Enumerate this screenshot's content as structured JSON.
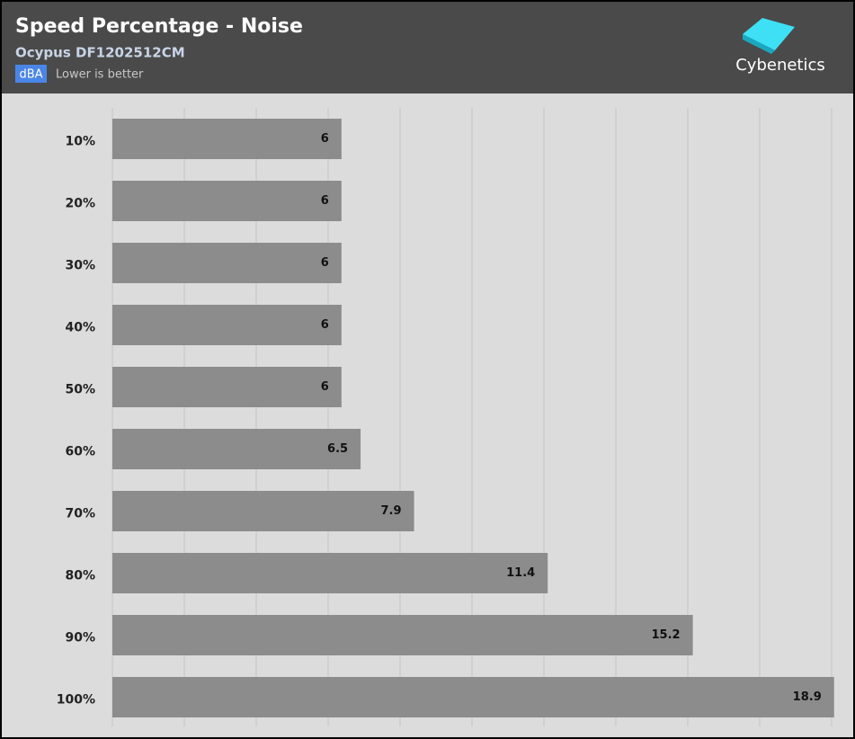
{
  "chart_data": {
    "type": "bar",
    "orientation": "horizontal",
    "title": "Speed Percentage - Noise",
    "subtitle": "Ocypus DF1202512CM",
    "unit": "dBA",
    "note": "Lower is better",
    "brand": "Cybenetics",
    "categories": [
      "10%",
      "20%",
      "30%",
      "40%",
      "50%",
      "60%",
      "70%",
      "80%",
      "90%",
      "100%"
    ],
    "values": [
      6,
      6,
      6,
      6,
      6,
      6.5,
      7.9,
      11.4,
      15.2,
      18.9
    ],
    "color": "#8c8c8c",
    "xlim": [
      0,
      19
    ]
  }
}
